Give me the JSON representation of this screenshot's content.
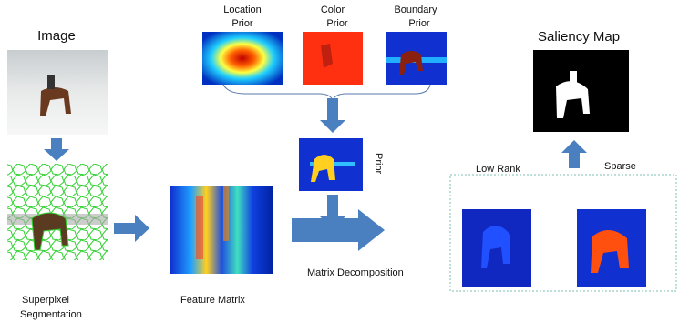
{
  "labels": {
    "image": "Image",
    "location_prior": [
      "Location",
      "Prior"
    ],
    "color_prior": [
      "Color",
      "Prior"
    ],
    "boundary_prior": [
      "Boundary",
      "Prior"
    ],
    "saliency_map": "Saliency Map",
    "prior": "Prior",
    "low_rank": "Low Rank",
    "sparse": "Sparse",
    "matrix_decomposition": "Matrix Decomposition",
    "superpixel_segmentation": [
      "Superpixel",
      "Segmentation"
    ],
    "feature_matrix": "Feature Matrix"
  }
}
